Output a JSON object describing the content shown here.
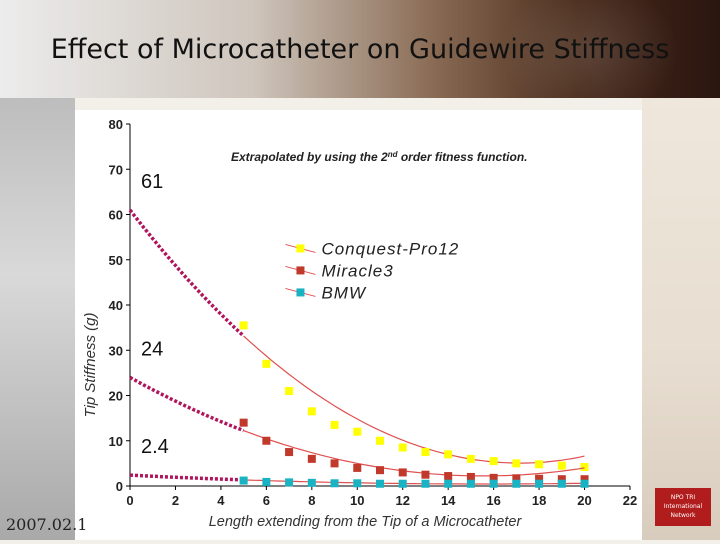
{
  "slide": {
    "title": "Effect of Microcatheter on Guidewire Stiffness",
    "date": "2007.02.1",
    "logo_lines": [
      "NPO TRI",
      "International",
      "Network"
    ]
  },
  "chart_data": {
    "type": "scatter",
    "annotation": "Extrapolated by using the 2nd order fitness function.",
    "annotation_main": "Extrapolated by using the 2",
    "annotation_sup": "nd",
    "annotation_tail": " order fitness function.",
    "xlabel": "Length extending from the Tip of a Microcatheter",
    "ylabel": "Tip Stiffness (g)",
    "xlim": [
      0,
      22
    ],
    "ylim": [
      0,
      80
    ],
    "xticks": [
      0,
      2,
      4,
      6,
      8,
      10,
      12,
      14,
      16,
      18,
      20,
      22
    ],
    "yticks": [
      0,
      10,
      20,
      30,
      40,
      50,
      60,
      70,
      80
    ],
    "grid": false,
    "legend_position": "upper-middle",
    "value_labels": [
      {
        "text": "61",
        "y": 61
      },
      {
        "text": "24",
        "y": 24
      },
      {
        "text": "2.4",
        "y": 2.4
      }
    ],
    "series": [
      {
        "name": "Conquest-Pro12",
        "color": "#ffff00",
        "x": [
          5,
          6,
          7,
          8,
          9,
          10,
          11,
          12,
          13,
          14,
          15,
          16,
          17,
          18,
          19,
          20
        ],
        "y": [
          35.5,
          27,
          21,
          16.5,
          13.5,
          12,
          10,
          8.5,
          7.5,
          7,
          6,
          5.5,
          5,
          4.8,
          4.5,
          4.2
        ],
        "fit": [
          61,
          -6.52,
          0.19
        ],
        "extrapolated_at_0": 61
      },
      {
        "name": "Miracle3",
        "color": "#c0392b",
        "x": [
          5,
          6,
          7,
          8,
          9,
          10,
          11,
          12,
          13,
          14,
          15,
          16,
          17,
          18,
          19,
          20
        ],
        "y": [
          14,
          10,
          7.5,
          6,
          5,
          4,
          3.5,
          3,
          2.5,
          2.2,
          2,
          1.8,
          1.7,
          1.6,
          1.5,
          1.5
        ],
        "fit": [
          24,
          -2.8,
          0.09
        ],
        "extrapolated_at_0": 24
      },
      {
        "name": "BMW",
        "color": "#19b3c3",
        "x": [
          5,
          6,
          7,
          8,
          9,
          10,
          11,
          12,
          13,
          14,
          15,
          16,
          17,
          18,
          19,
          20
        ],
        "y": [
          1.2,
          0.9,
          0.8,
          0.7,
          0.6,
          0.6,
          0.5,
          0.5,
          0.5,
          0.5,
          0.5,
          0.5,
          0.5,
          0.5,
          0.5,
          0.5
        ],
        "fit": [
          2.4,
          -0.25,
          0.008
        ],
        "extrapolated_at_0": 2.4
      }
    ],
    "colors": {
      "fit_line": "#e05050",
      "extrapolation": "#b0155c",
      "axis": "#000000"
    }
  }
}
